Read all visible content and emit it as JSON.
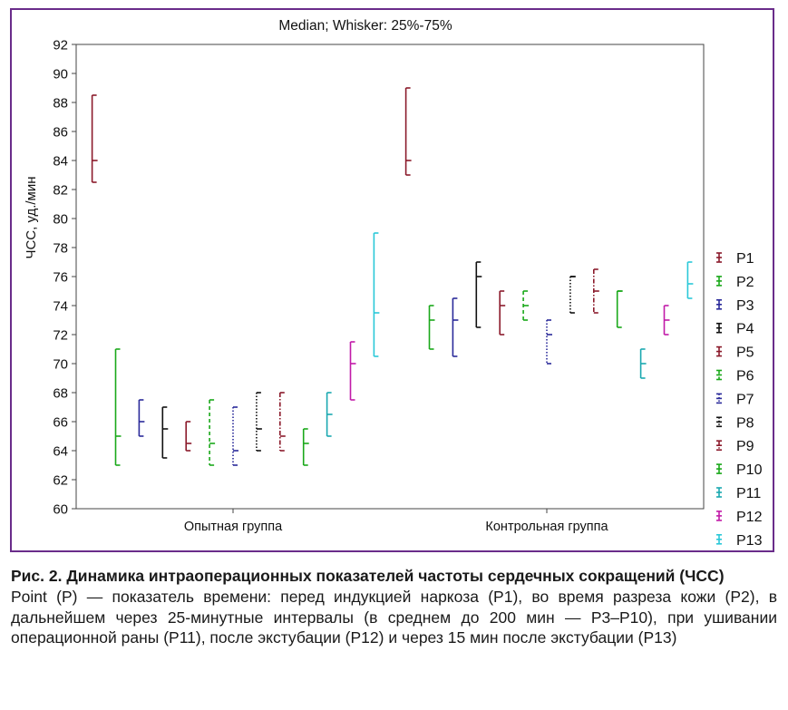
{
  "chart_data": {
    "type": "box",
    "title": "Median; Whisker: 25%-75%",
    "ylabel": "ЧСС, уд./мин",
    "xlabel": "",
    "ylim": [
      60,
      92
    ],
    "yticks": [
      60,
      62,
      64,
      66,
      68,
      70,
      72,
      74,
      76,
      78,
      80,
      82,
      84,
      86,
      88,
      90,
      92
    ],
    "categories": [
      "Опытная группа",
      "Контрольная группа"
    ],
    "legend_position": "right",
    "series": [
      {
        "name": "P1",
        "color": "#8b1a2b",
        "dash": "solid",
        "values": [
          {
            "median": 84.0,
            "q1": 82.5,
            "q3": 88.5
          },
          {
            "median": 84.0,
            "q1": 83.0,
            "q3": 89.0
          }
        ]
      },
      {
        "name": "P2",
        "color": "#1aa81a",
        "dash": "solid",
        "values": [
          {
            "median": 65.0,
            "q1": 63.0,
            "q3": 71.0
          },
          {
            "median": 73.0,
            "q1": 71.0,
            "q3": 74.0
          }
        ]
      },
      {
        "name": "P3",
        "color": "#2a2a9a",
        "dash": "solid",
        "values": [
          {
            "median": 66.0,
            "q1": 65.0,
            "q3": 67.5
          },
          {
            "median": 73.0,
            "q1": 70.5,
            "q3": 74.5
          }
        ]
      },
      {
        "name": "P4",
        "color": "#111111",
        "dash": "solid",
        "values": [
          {
            "median": 65.5,
            "q1": 63.5,
            "q3": 67.0
          },
          {
            "median": 76.0,
            "q1": 72.5,
            "q3": 77.0
          }
        ]
      },
      {
        "name": "P5",
        "color": "#8b1a2b",
        "dash": "solid",
        "values": [
          {
            "median": 64.5,
            "q1": 64.0,
            "q3": 66.0
          },
          {
            "median": 74.0,
            "q1": 72.0,
            "q3": 75.0
          }
        ]
      },
      {
        "name": "P6",
        "color": "#1aa81a",
        "dash": "dashed",
        "values": [
          {
            "median": 64.5,
            "q1": 63.0,
            "q3": 67.5
          },
          {
            "median": 74.0,
            "q1": 73.0,
            "q3": 75.0
          }
        ]
      },
      {
        "name": "P7",
        "color": "#2a2a9a",
        "dash": "dotted",
        "values": [
          {
            "median": 64.0,
            "q1": 63.0,
            "q3": 67.0
          },
          {
            "median": 72.0,
            "q1": 70.0,
            "q3": 73.0
          }
        ]
      },
      {
        "name": "P8",
        "color": "#111111",
        "dash": "dotted",
        "values": [
          {
            "median": 65.5,
            "q1": 64.0,
            "q3": 68.0
          },
          {
            "median": 76.0,
            "q1": 73.5,
            "q3": 76.0
          }
        ]
      },
      {
        "name": "P9",
        "color": "#8b1a2b",
        "dash": "dashdot",
        "values": [
          {
            "median": 65.0,
            "q1": 64.0,
            "q3": 68.0
          },
          {
            "median": 75.0,
            "q1": 73.5,
            "q3": 76.5
          }
        ]
      },
      {
        "name": "P10",
        "color": "#1aa81a",
        "dash": "solid",
        "values": [
          {
            "median": 64.5,
            "q1": 63.0,
            "q3": 65.5
          },
          {
            "median": 75.0,
            "q1": 72.5,
            "q3": 75.0
          }
        ]
      },
      {
        "name": "P11",
        "color": "#1aa8b0",
        "dash": "solid",
        "values": [
          {
            "median": 66.5,
            "q1": 65.0,
            "q3": 68.0
          },
          {
            "median": 70.0,
            "q1": 69.0,
            "q3": 71.0
          }
        ]
      },
      {
        "name": "P12",
        "color": "#c21aa8",
        "dash": "solid",
        "values": [
          {
            "median": 70.0,
            "q1": 67.5,
            "q3": 71.5
          },
          {
            "median": 73.0,
            "q1": 72.0,
            "q3": 74.0
          }
        ]
      },
      {
        "name": "P13",
        "color": "#2ac8d8",
        "dash": "solid",
        "values": [
          {
            "median": 73.5,
            "q1": 70.5,
            "q3": 79.0
          },
          {
            "median": 75.5,
            "q1": 74.5,
            "q3": 77.0
          }
        ]
      }
    ]
  },
  "caption": {
    "title": "Рис. 2. Динамика интраоперационных показателей частоты сердечных сокращений (ЧСС)",
    "body": "Point (P) — показатель времени: перед индукцией наркоза (P1), во время разреза кожи (P2), в дальнейшем через 25-минутные интервалы (в среднем до 200 мин — P3–P10), при ушивании операционной раны (P11), после экстубации (P12) и через 15 мин после экстубации (P13)"
  }
}
